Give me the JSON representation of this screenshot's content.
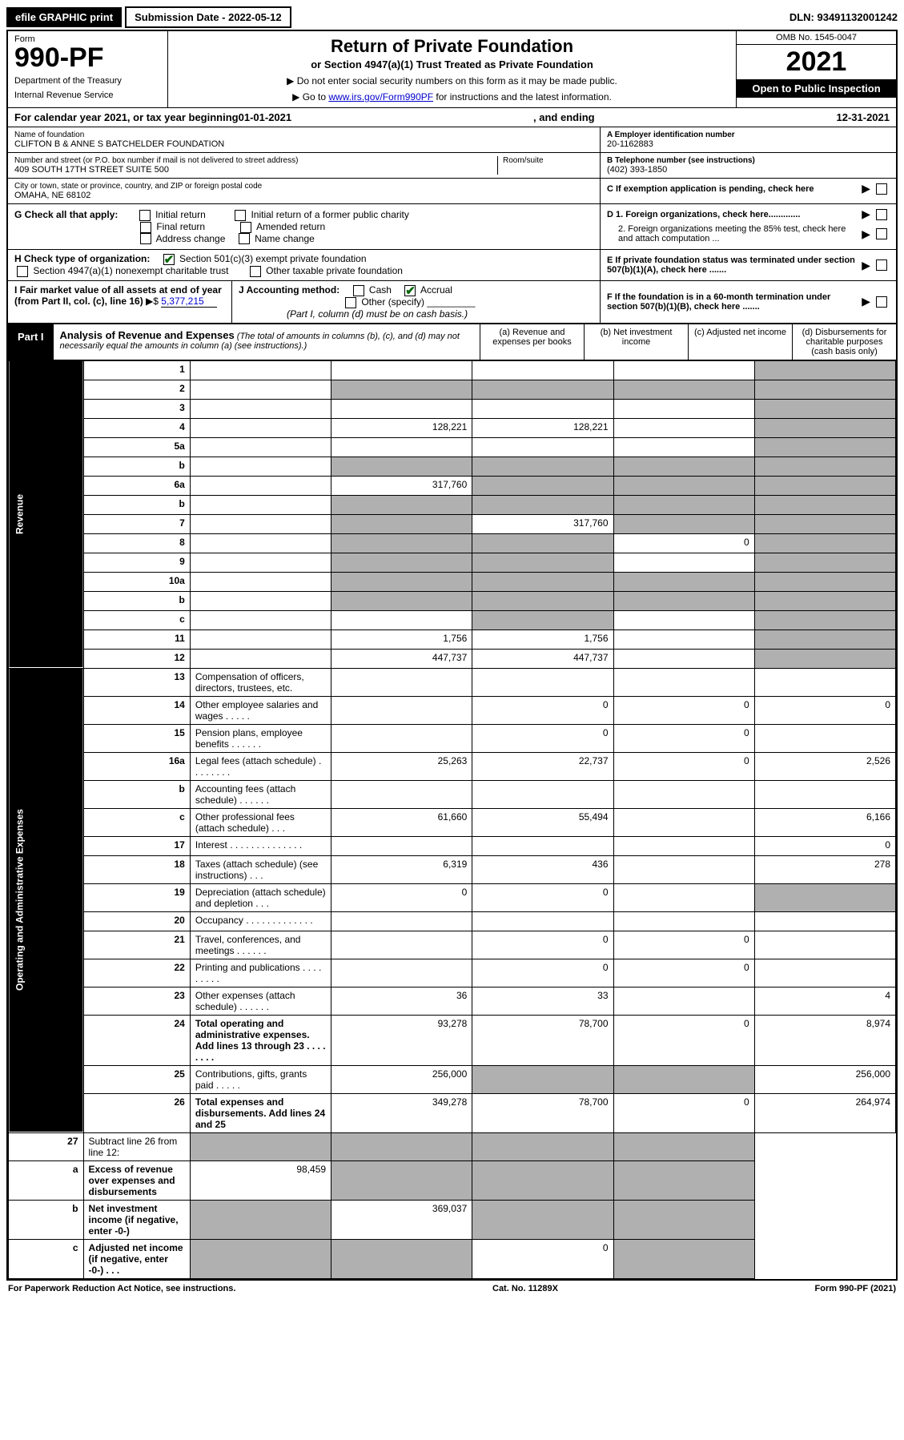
{
  "top": {
    "efile": "efile GRAPHIC print",
    "submission": "Submission Date - 2022-05-12",
    "dln": "DLN: 93491132001242"
  },
  "header": {
    "form_label": "Form",
    "form_number": "990-PF",
    "dept1": "Department of the Treasury",
    "dept2": "Internal Revenue Service",
    "title": "Return of Private Foundation",
    "subtitle": "or Section 4947(a)(1) Trust Treated as Private Foundation",
    "note1": "▶ Do not enter social security numbers on this form as it may be made public.",
    "note2_pre": "▶ Go to ",
    "note2_link": "www.irs.gov/Form990PF",
    "note2_post": " for instructions and the latest information.",
    "omb": "OMB No. 1545-0047",
    "year": "2021",
    "open": "Open to Public Inspection"
  },
  "cal_year": {
    "label": "For calendar year 2021, or tax year beginning ",
    "begin": "01-01-2021",
    "mid": ", and ending ",
    "end": "12-31-2021"
  },
  "foundation": {
    "name_label": "Name of foundation",
    "name": "CLIFTON B & ANNE S BATCHELDER FOUNDATION",
    "addr_label": "Number and street (or P.O. box number if mail is not delivered to street address)",
    "addr": "409 SOUTH 17TH STREET SUITE 500",
    "room_label": "Room/suite",
    "city_label": "City or town, state or province, country, and ZIP or foreign postal code",
    "city": "OMAHA, NE  68102",
    "ein_label": "A Employer identification number",
    "ein": "20-1162883",
    "phone_label": "B Telephone number (see instructions)",
    "phone": "(402) 393-1850",
    "c_label": "C If exemption application is pending, check here",
    "d1_label": "D 1. Foreign organizations, check here.............",
    "d2_label": "2. Foreign organizations meeting the 85% test, check here and attach computation ...",
    "e_label": "E  If private foundation status was terminated under section 507(b)(1)(A), check here .......",
    "f_label": "F  If the foundation is in a 60-month termination under section 507(b)(1)(B), check here ......."
  },
  "g": {
    "label": "G Check all that apply:",
    "opts": [
      "Initial return",
      "Final return",
      "Address change",
      "Initial return of a former public charity",
      "Amended return",
      "Name change"
    ]
  },
  "h": {
    "label": "H Check type of organization:",
    "opt1": "Section 501(c)(3) exempt private foundation",
    "opt2": "Section 4947(a)(1) nonexempt charitable trust",
    "opt3": "Other taxable private foundation"
  },
  "i": {
    "label": "I Fair market value of all assets at end of year (from Part II, col. (c), line 16)",
    "val_prefix": "▶$ ",
    "val": "5,377,215"
  },
  "j": {
    "label": "J Accounting method:",
    "cash": "Cash",
    "accrual": "Accrual",
    "other": "Other (specify)",
    "note": "(Part I, column (d) must be on cash basis.)"
  },
  "part1": {
    "label": "Part I",
    "title": "Analysis of Revenue and Expenses",
    "desc": "(The total of amounts in columns (b), (c), and (d) may not necessarily equal the amounts in column (a) (see instructions).)",
    "col_a": "(a)   Revenue and expenses per books",
    "col_b": "(b)   Net investment income",
    "col_c": "(c)   Adjusted net income",
    "col_d": "(d)   Disbursements for charitable purposes (cash basis only)"
  },
  "side_rev": "Revenue",
  "side_exp": "Operating and Administrative Expenses",
  "rows_rev": [
    {
      "n": "1",
      "d": "",
      "a": "",
      "b": "",
      "c": "",
      "sha": "",
      "shb": "",
      "shc": "",
      "shd": "s"
    },
    {
      "n": "2",
      "d": "",
      "a": "",
      "b": "",
      "c": "",
      "sha": "s",
      "shb": "s",
      "shc": "s",
      "shd": "s"
    },
    {
      "n": "3",
      "d": "",
      "a": "",
      "b": "",
      "c": "",
      "shd": "s"
    },
    {
      "n": "4",
      "d": "",
      "a": "128,221",
      "b": "128,221",
      "c": "",
      "shd": "s"
    },
    {
      "n": "5a",
      "d": "",
      "a": "",
      "b": "",
      "c": "",
      "shd": "s"
    },
    {
      "n": "b",
      "d": "",
      "a": "",
      "b": "",
      "c": "",
      "sha": "s",
      "shb": "s",
      "shc": "s",
      "shd": "s"
    },
    {
      "n": "6a",
      "d": "",
      "a": "317,760",
      "b": "",
      "c": "",
      "shb": "s",
      "shc": "s",
      "shd": "s"
    },
    {
      "n": "b",
      "d": "",
      "a": "",
      "b": "",
      "c": "",
      "sha": "s",
      "shb": "s",
      "shc": "s",
      "shd": "s"
    },
    {
      "n": "7",
      "d": "",
      "a": "",
      "b": "317,760",
      "c": "",
      "sha": "s",
      "shc": "s",
      "shd": "s"
    },
    {
      "n": "8",
      "d": "",
      "a": "",
      "b": "",
      "c": "0",
      "sha": "s",
      "shb": "s",
      "shd": "s"
    },
    {
      "n": "9",
      "d": "",
      "a": "",
      "b": "",
      "c": "",
      "sha": "s",
      "shb": "s",
      "shd": "s"
    },
    {
      "n": "10a",
      "d": "",
      "a": "",
      "b": "",
      "c": "",
      "sha": "s",
      "shb": "s",
      "shc": "s",
      "shd": "s"
    },
    {
      "n": "b",
      "d": "",
      "a": "",
      "b": "",
      "c": "",
      "sha": "s",
      "shb": "s",
      "shc": "s",
      "shd": "s"
    },
    {
      "n": "c",
      "d": "",
      "a": "",
      "b": "",
      "c": "",
      "shb": "s",
      "shd": "s"
    },
    {
      "n": "11",
      "d": "",
      "a": "1,756",
      "b": "1,756",
      "c": "",
      "shd": "s"
    },
    {
      "n": "12",
      "d": "",
      "a": "447,737",
      "b": "447,737",
      "c": "",
      "bold": true,
      "shd": "s"
    }
  ],
  "rows_exp": [
    {
      "n": "13",
      "d": "Compensation of officers, directors, trustees, etc.",
      "a": "",
      "b": "",
      "c": "",
      "dd": ""
    },
    {
      "n": "14",
      "d": "Other employee salaries and wages  . . . . .",
      "a": "",
      "b": "0",
      "c": "0",
      "dd": "0"
    },
    {
      "n": "15",
      "d": "Pension plans, employee benefits . . . . . .",
      "a": "",
      "b": "0",
      "c": "0",
      "dd": ""
    },
    {
      "n": "16a",
      "d": "Legal fees (attach schedule) . . . . . . . .",
      "a": "25,263",
      "b": "22,737",
      "c": "0",
      "dd": "2,526"
    },
    {
      "n": "b",
      "d": "Accounting fees (attach schedule) . . . . . .",
      "a": "",
      "b": "",
      "c": "",
      "dd": ""
    },
    {
      "n": "c",
      "d": "Other professional fees (attach schedule)  . . .",
      "a": "61,660",
      "b": "55,494",
      "c": "",
      "dd": "6,166"
    },
    {
      "n": "17",
      "d": "Interest . . . . . . . . . . . . . .",
      "a": "",
      "b": "",
      "c": "",
      "dd": "0"
    },
    {
      "n": "18",
      "d": "Taxes (attach schedule) (see instructions)  . . .",
      "a": "6,319",
      "b": "436",
      "c": "",
      "dd": "278"
    },
    {
      "n": "19",
      "d": "Depreciation (attach schedule) and depletion  . . .",
      "a": "0",
      "b": "0",
      "c": "",
      "dd": "",
      "shd": "s"
    },
    {
      "n": "20",
      "d": "Occupancy . . . . . . . . . . . . .",
      "a": "",
      "b": "",
      "c": "",
      "dd": ""
    },
    {
      "n": "21",
      "d": "Travel, conferences, and meetings . . . . . .",
      "a": "",
      "b": "0",
      "c": "0",
      "dd": ""
    },
    {
      "n": "22",
      "d": "Printing and publications . . . . . . . . .",
      "a": "",
      "b": "0",
      "c": "0",
      "dd": ""
    },
    {
      "n": "23",
      "d": "Other expenses (attach schedule) . . . . . .",
      "a": "36",
      "b": "33",
      "c": "",
      "dd": "4"
    },
    {
      "n": "24",
      "d": "Total operating and administrative expenses. Add lines 13 through 23  . . . . . . . .",
      "a": "93,278",
      "b": "78,700",
      "c": "0",
      "dd": "8,974",
      "bold": true
    },
    {
      "n": "25",
      "d": "Contributions, gifts, grants paid  . . . . .",
      "a": "256,000",
      "b": "",
      "c": "",
      "dd": "256,000",
      "shb": "s",
      "shc": "s"
    },
    {
      "n": "26",
      "d": "Total expenses and disbursements. Add lines 24 and 25",
      "a": "349,278",
      "b": "78,700",
      "c": "0",
      "dd": "264,974",
      "bold": true
    }
  ],
  "rows_net": [
    {
      "n": "27",
      "d": "Subtract line 26 from line 12:",
      "a": "",
      "b": "",
      "c": "",
      "dd": "",
      "sha": "s",
      "shb": "s",
      "shc": "s",
      "shd": "s"
    },
    {
      "n": "a",
      "d": "Excess of revenue over expenses and disbursements",
      "a": "98,459",
      "b": "",
      "c": "",
      "dd": "",
      "bold": true,
      "shb": "s",
      "shc": "s",
      "shd": "s"
    },
    {
      "n": "b",
      "d": "Net investment income (if negative, enter -0-)",
      "a": "",
      "b": "369,037",
      "c": "",
      "dd": "",
      "bold": true,
      "sha": "s",
      "shc": "s",
      "shd": "s"
    },
    {
      "n": "c",
      "d": "Adjusted net income (if negative, enter -0-)  . . .",
      "a": "",
      "b": "",
      "c": "0",
      "dd": "",
      "bold": true,
      "sha": "s",
      "shb": "s",
      "shd": "s"
    }
  ],
  "footer": {
    "left": "For Paperwork Reduction Act Notice, see instructions.",
    "mid": "Cat. No. 11289X",
    "right": "Form 990-PF (2021)"
  }
}
